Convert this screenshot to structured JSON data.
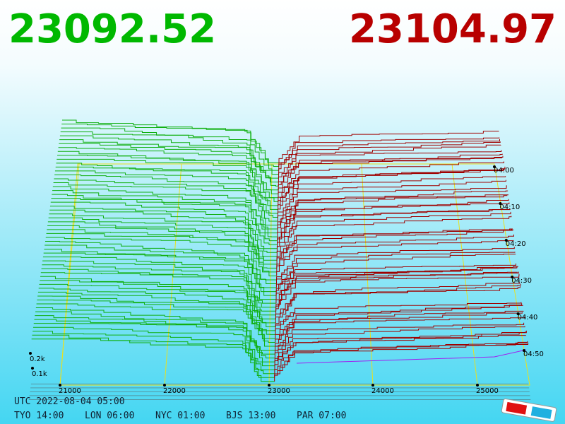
{
  "header": {
    "bid": "23092.52",
    "ask": "23104.97"
  },
  "price_axis": {
    "labels": [
      "21000",
      "22000",
      "23000",
      "24000",
      "25000"
    ]
  },
  "volume_axis": {
    "labels": [
      "0.2k",
      "0.1k"
    ]
  },
  "time_axis": {
    "labels": [
      "04:00",
      "04:10",
      "04:20",
      "04:30",
      "04:40",
      "04:50"
    ]
  },
  "footer": {
    "utc": "UTC 2022-08-04 05:00",
    "clocks": [
      "TYO 14:00",
      "LON 06:00",
      "NYC 01:00",
      "BJS 13:00",
      "PAR 07:00"
    ]
  }
}
